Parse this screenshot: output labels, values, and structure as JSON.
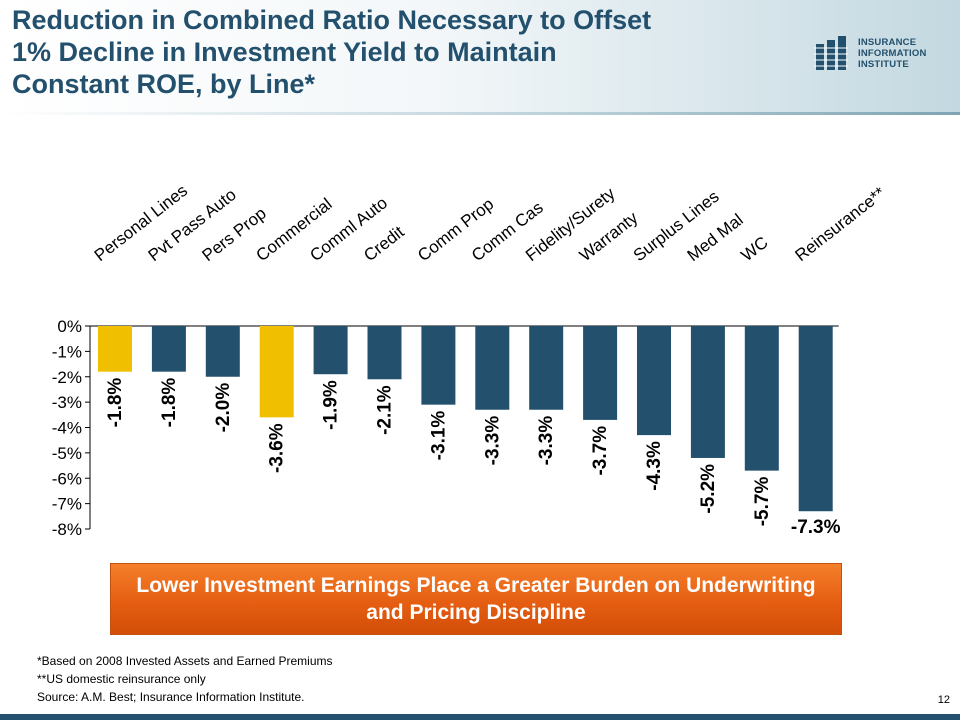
{
  "title_lines": [
    "Reduction in Combined Ratio Necessary to Offset",
    "1% Decline in Investment Yield to Maintain",
    "Constant ROE, by Line*"
  ],
  "logo": {
    "lines": [
      "INSURANCE",
      "INFORMATION",
      "INSTITUTE"
    ],
    "color": "#22506d"
  },
  "callout": {
    "text": "Lower Investment Earnings Place a Greater Burden on Underwriting and Pricing Discipline",
    "color": "#e8631a"
  },
  "footnotes": [
    "*Based on 2008 Invested Assets and Earned Premiums",
    "**US domestic reinsurance only",
    "Source: A.M. Best; Insurance Information Institute."
  ],
  "page_number": "12",
  "colors": {
    "primary_bar": "#22506d",
    "highlight_bar": "#f0c000",
    "title": "#22506d"
  },
  "chart_data": {
    "type": "bar",
    "categories": [
      "Personal Lines",
      "Pvt Pass Auto",
      "Pers Prop",
      "Commercial",
      "Comml Auto",
      "Credit",
      "Comm Prop",
      "Comm Cas",
      "Fidelity/Surety",
      "Warranty",
      "Surplus Lines",
      "Med Mal",
      "WC",
      "Reinsurance**"
    ],
    "values": [
      -1.8,
      -1.8,
      -2.0,
      -3.6,
      -1.9,
      -2.1,
      -3.1,
      -3.3,
      -3.3,
      -3.7,
      -4.3,
      -5.2,
      -5.7,
      -7.3
    ],
    "data_labels": [
      "-1.8%",
      "-1.8%",
      "-2.0%",
      "-3.6%",
      "-1.9%",
      "-2.1%",
      "-3.1%",
      "-3.3%",
      "-3.3%",
      "-3.7%",
      "-4.3%",
      "-5.2%",
      "-5.7%",
      "-7.3%"
    ],
    "highlight": [
      true,
      false,
      false,
      true,
      false,
      false,
      false,
      false,
      false,
      false,
      false,
      false,
      false,
      false
    ],
    "ylim": [
      -8,
      0
    ],
    "yticks": [
      0,
      -1,
      -2,
      -3,
      -4,
      -5,
      -6,
      -7,
      -8
    ],
    "ytick_labels": [
      "0%",
      "-1%",
      "-2%",
      "-3%",
      "-4%",
      "-5%",
      "-6%",
      "-7%",
      "-8%"
    ],
    "title": "",
    "xlabel": "",
    "ylabel": "",
    "grid": false,
    "legend": "none"
  }
}
